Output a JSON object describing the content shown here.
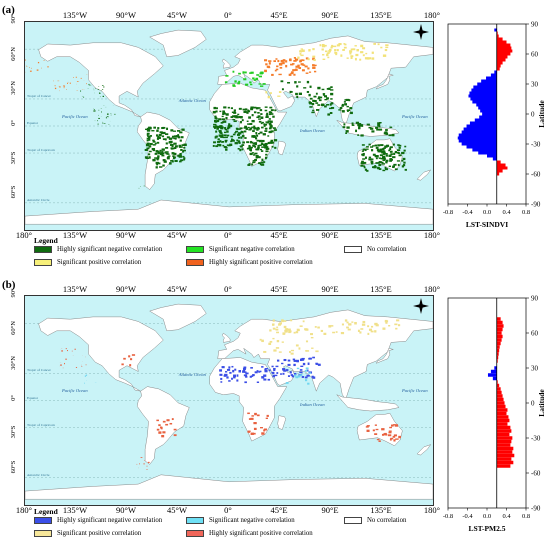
{
  "panels": [
    {
      "id": "a",
      "label": "(a)",
      "map": {
        "lon_ticks": [
          "135°W",
          "90°W",
          "45°W",
          "0°",
          "45°E",
          "90°E",
          "135°E",
          "180°"
        ],
        "lon_ticks_bottom": [
          "180°",
          "135°W",
          "90°W",
          "45°W",
          "0°",
          "45°E",
          "90°E",
          "135°E",
          "180°"
        ],
        "lat_ticks": [
          "90°",
          "60°N",
          "30°N",
          "0°",
          "30°S",
          "60°S"
        ],
        "ocean_labels": [
          "Atlantic Ocean",
          "Pacific Ocean",
          "Indian Ocean",
          "Pacific Ocean"
        ],
        "line_labels": [
          "Tropic of Cancer",
          "Equator",
          "Tropic of Capricorn",
          "Antarctic Circle"
        ],
        "dominant_colors": [
          "#0f6b0f",
          "#23cc23",
          "#f57c2a",
          "#f2e27a"
        ]
      },
      "legend": {
        "title": "Legend",
        "items": [
          {
            "label": "Highly significant negative correlation",
            "color": "#0f6b0f"
          },
          {
            "label": "Significant negative correlation",
            "color": "#23e323"
          },
          {
            "label": "No correlation",
            "color": "#ffffff"
          },
          {
            "label": "Significant positive correlation",
            "color": "#f7f07a"
          },
          {
            "label": "Highly significant positive correlation",
            "color": "#f0621e"
          }
        ]
      },
      "chart_data": {
        "type": "area",
        "xlabel": "LST-SINDVI",
        "ylabel": "Latitude",
        "xlim": [
          -1,
          0.6
        ],
        "ylim": [
          -90,
          90
        ],
        "xticks": [
          "-0.8",
          "-0.4",
          "0.0",
          "0.4",
          "0.8"
        ],
        "yticks": [
          "90",
          "60",
          "30",
          "0",
          "-30",
          "-60",
          "-90"
        ],
        "lat": [
          84,
          81,
          78,
          75,
          72,
          69,
          66,
          63,
          60,
          57,
          54,
          51,
          48,
          45,
          42,
          39,
          36,
          33,
          30,
          27,
          24,
          21,
          18,
          15,
          12,
          9,
          6,
          3,
          0,
          -3,
          -6,
          -9,
          -12,
          -15,
          -18,
          -21,
          -24,
          -27,
          -30,
          -33,
          -36,
          -39,
          -42,
          -45,
          -48,
          -51,
          -54,
          -57,
          -60
        ],
        "values": [
          -0.05,
          0.02,
          0.04,
          0.12,
          0.2,
          0.28,
          0.3,
          0.32,
          0.28,
          0.22,
          0.18,
          0.12,
          0.08,
          0.06,
          -0.05,
          -0.12,
          -0.22,
          -0.32,
          -0.4,
          -0.48,
          -0.52,
          -0.56,
          -0.58,
          -0.54,
          -0.5,
          -0.42,
          -0.38,
          -0.34,
          -0.3,
          -0.36,
          -0.45,
          -0.55,
          -0.62,
          -0.68,
          -0.72,
          -0.78,
          -0.8,
          -0.78,
          -0.72,
          -0.62,
          -0.5,
          -0.38,
          -0.2,
          -0.08,
          0.08,
          0.18,
          0.22,
          0.12,
          0.05
        ],
        "positive_color": "#ff0000",
        "negative_color": "#0000ff"
      }
    },
    {
      "id": "b",
      "label": "(b)",
      "map": {
        "lon_ticks": [
          "135°W",
          "90°W",
          "45°W",
          "0°",
          "45°E",
          "90°E",
          "135°E",
          "180°"
        ],
        "lon_ticks_bottom": [
          "180°",
          "135°W",
          "90°W",
          "45°W",
          "0°",
          "45°E",
          "90°E",
          "135°E",
          "180°"
        ],
        "lat_ticks": [
          "90°",
          "60°N",
          "30°N",
          "0°",
          "30°S",
          "60°S"
        ],
        "ocean_labels": [
          "Atlantic Ocean",
          "Pacific Ocean",
          "Indian Ocean",
          "Pacific Ocean"
        ],
        "line_labels": [
          "Tropic of Cancer",
          "Equator",
          "Tropic of Capricorn",
          "Antarctic Circle"
        ],
        "dominant_colors": [
          "#3a4de6",
          "#6fd6f0",
          "#f0e08a",
          "#e8613f"
        ]
      },
      "legend": {
        "title": "Legend",
        "items": [
          {
            "label": "Highly significant negative correlation",
            "color": "#3b4fe8"
          },
          {
            "label": "Significant negative correlation",
            "color": "#6fe0f5"
          },
          {
            "label": "No correlation",
            "color": "#ffffff"
          },
          {
            "label": "Significant positive correlation",
            "color": "#f7e79a"
          },
          {
            "label": "Highly significant positive correlation",
            "color": "#f0665a"
          }
        ]
      },
      "chart_data": {
        "type": "area",
        "xlabel": "LST-PM2.5",
        "ylabel": "Latitude",
        "xlim": [
          -1,
          0.6
        ],
        "ylim": [
          -90,
          90
        ],
        "xticks": [
          "-0.8",
          "-0.4",
          "0.0",
          "0.4",
          "0.8"
        ],
        "yticks": [
          "90",
          "60",
          "30",
          "0",
          "-30",
          "-60",
          "-90"
        ],
        "lat": [
          72,
          69,
          66,
          63,
          60,
          57,
          54,
          51,
          48,
          45,
          42,
          39,
          36,
          33,
          30,
          27,
          24,
          21,
          18,
          15,
          12,
          9,
          6,
          3,
          0,
          -3,
          -6,
          -9,
          -12,
          -15,
          -18,
          -21,
          -24,
          -27,
          -30,
          -33,
          -36,
          -39,
          -42,
          -45,
          -48,
          -51,
          -54
        ],
        "values": [
          0.08,
          0.12,
          0.14,
          0.12,
          0.1,
          0.12,
          0.1,
          0.08,
          0.06,
          0.05,
          0.04,
          0.03,
          0.02,
          0.0,
          -0.05,
          -0.12,
          -0.18,
          -0.08,
          0.02,
          0.05,
          0.08,
          0.1,
          0.12,
          0.14,
          0.16,
          0.18,
          0.22,
          0.2,
          0.24,
          0.26,
          0.22,
          0.28,
          0.3,
          0.26,
          0.32,
          0.3,
          0.28,
          0.34,
          0.32,
          0.36,
          0.3,
          0.34,
          0.28
        ],
        "positive_color": "#ff0000",
        "negative_color": "#0000ff"
      }
    }
  ]
}
